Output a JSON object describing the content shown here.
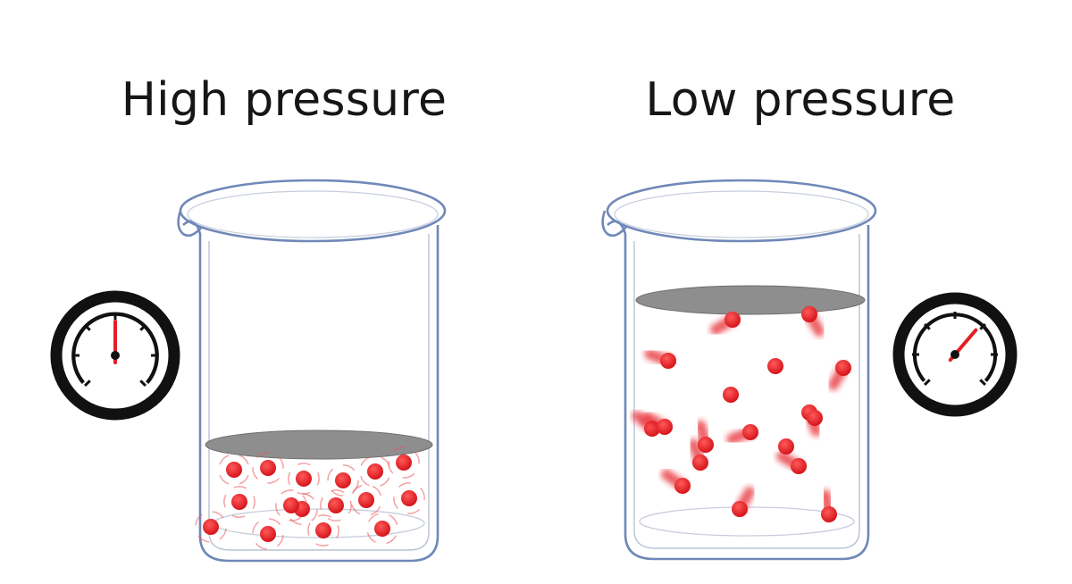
{
  "panels": {
    "high": {
      "title": "High pressure",
      "gauge_level": 0.5,
      "molecule_count": 16
    },
    "low": {
      "title": "Low pressure",
      "gauge_level": 0.65,
      "molecule_count": 18
    }
  },
  "colors": {
    "background": "#ffffff",
    "text": "#161616",
    "beaker_outline": "#6b84b4",
    "piston": "#8e8e8e",
    "molecule": "#e51e24",
    "gauge_ring": "#111111",
    "needle": "#e51e24"
  },
  "icons": [
    "beaker-icon",
    "piston-icon",
    "molecule-icon",
    "pressure-gauge-icon"
  ]
}
